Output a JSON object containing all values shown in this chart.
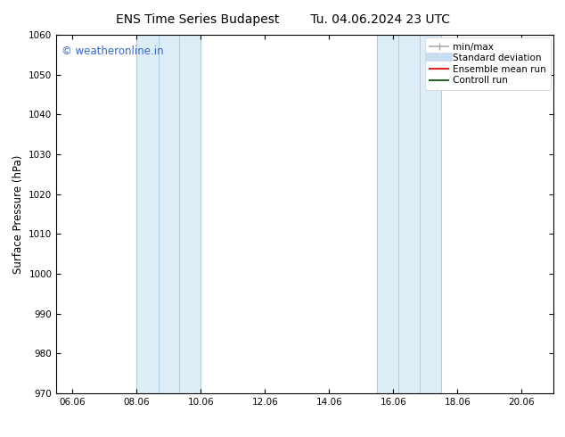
{
  "title_left": "ENS Time Series Budapest",
  "title_right": "Tu. 04.06.2024 23 UTC",
  "ylabel": "Surface Pressure (hPa)",
  "ylim": [
    970,
    1060
  ],
  "yticks": [
    970,
    980,
    990,
    1000,
    1010,
    1020,
    1030,
    1040,
    1050,
    1060
  ],
  "xlim_start": 5.5,
  "xlim_end": 21.0,
  "xtick_labels": [
    "06.06",
    "08.06",
    "10.06",
    "12.06",
    "14.06",
    "16.06",
    "18.06",
    "20.06"
  ],
  "xtick_positions": [
    6.0,
    8.0,
    10.0,
    12.0,
    14.0,
    16.0,
    18.0,
    20.0
  ],
  "shaded_bands": [
    {
      "x_start": 8.0,
      "x_end": 10.0,
      "inner_lines": [
        8.67,
        9.33
      ]
    },
    {
      "x_start": 15.5,
      "x_end": 17.5,
      "inner_lines": [
        16.17,
        16.83
      ]
    }
  ],
  "band_color": "#ddeef8",
  "band_edge_color": "#aacce8",
  "band_inner_line_color": "#aacce8",
  "background_color": "#ffffff",
  "watermark_text": "© weatheronline.in",
  "watermark_color": "#3366cc",
  "watermark_fontsize": 8.5,
  "legend_entries": [
    {
      "label": "min/max",
      "color": "#aaaaaa",
      "lw": 1.2,
      "style": "caps"
    },
    {
      "label": "Standard deviation",
      "color": "#c8ddf0",
      "lw": 7,
      "style": "solid"
    },
    {
      "label": "Ensemble mean run",
      "color": "#dd2222",
      "lw": 1.5,
      "style": "solid"
    },
    {
      "label": "Controll run",
      "color": "#226622",
      "lw": 1.5,
      "style": "solid"
    }
  ],
  "title_fontsize": 10,
  "tick_fontsize": 7.5,
  "legend_fontsize": 7.5,
  "ylabel_fontsize": 8.5,
  "figure_width": 6.34,
  "figure_height": 4.9,
  "dpi": 100
}
